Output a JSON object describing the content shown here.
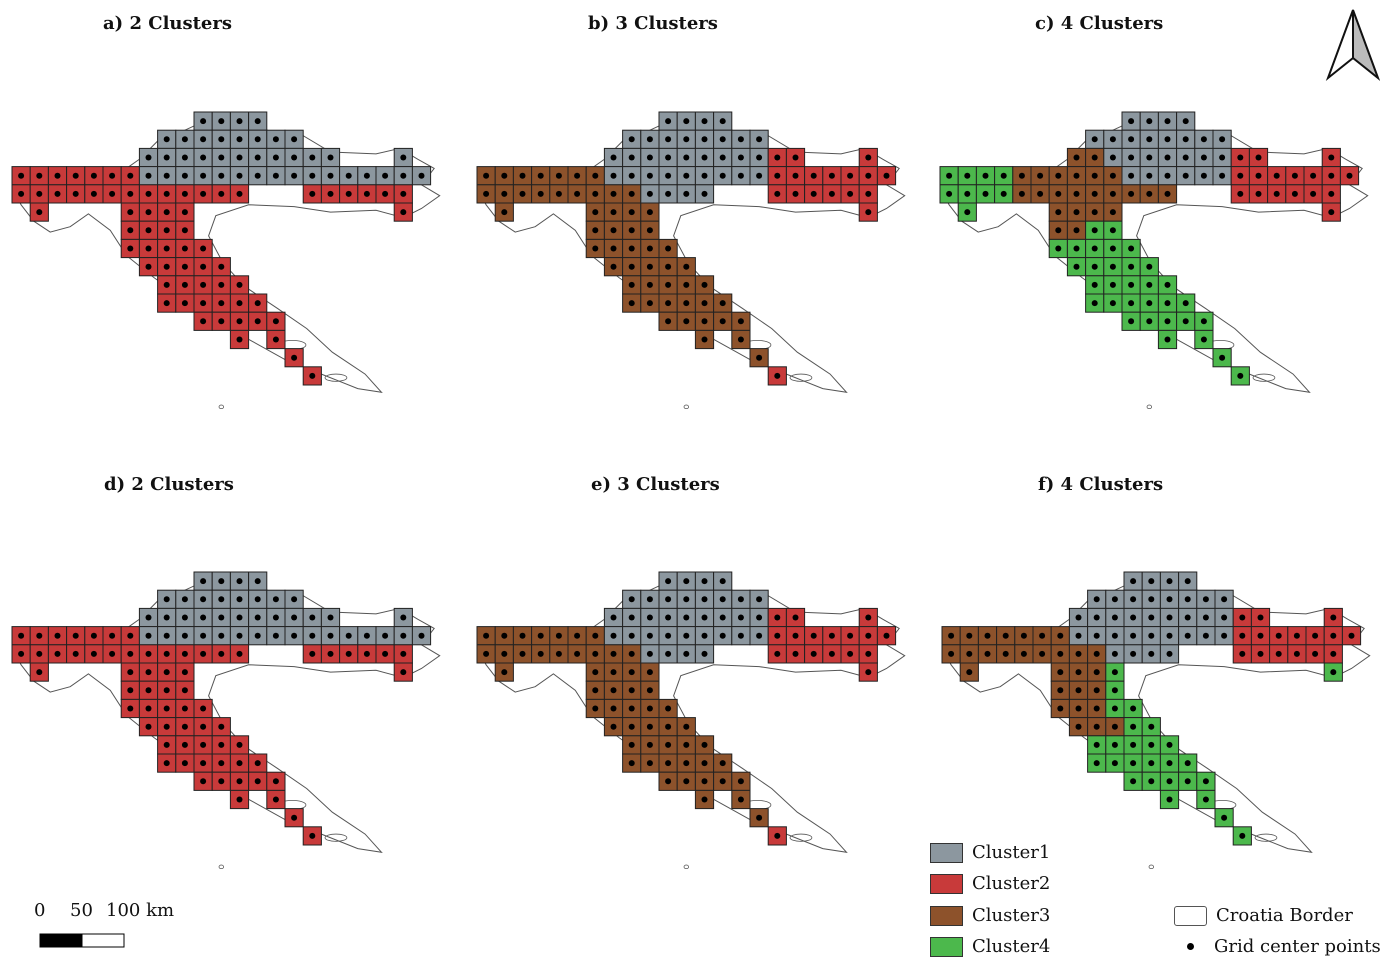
{
  "panels": [
    {
      "id": "a",
      "title": "a) 2 Clusters"
    },
    {
      "id": "b",
      "title": "b)  3 Clusters"
    },
    {
      "id": "c",
      "title": "c) 4 Clusters"
    },
    {
      "id": "d",
      "title": "d) 2 Clusters"
    },
    {
      "id": "e",
      "title": "e)  3 Clusters"
    },
    {
      "id": "f",
      "title": "f) 4 Clusters"
    }
  ],
  "legend": {
    "cluster1": "Cluster1",
    "cluster2": "Cluster2",
    "cluster3": "Cluster3",
    "cluster4": "Cluster4",
    "border": "Croatia Border",
    "points": "Grid center points"
  },
  "colors": {
    "cluster1": "#8c979f",
    "cluster2": "#c83a3a",
    "cluster3": "#8d522b",
    "cluster4": "#4cb84c",
    "cell_edge": "#222222",
    "border": "#555555"
  },
  "scale_bar": {
    "tick0": "0",
    "tick1": "50",
    "tick2": "100 km"
  },
  "north_arrow": "north-arrow-icon"
}
